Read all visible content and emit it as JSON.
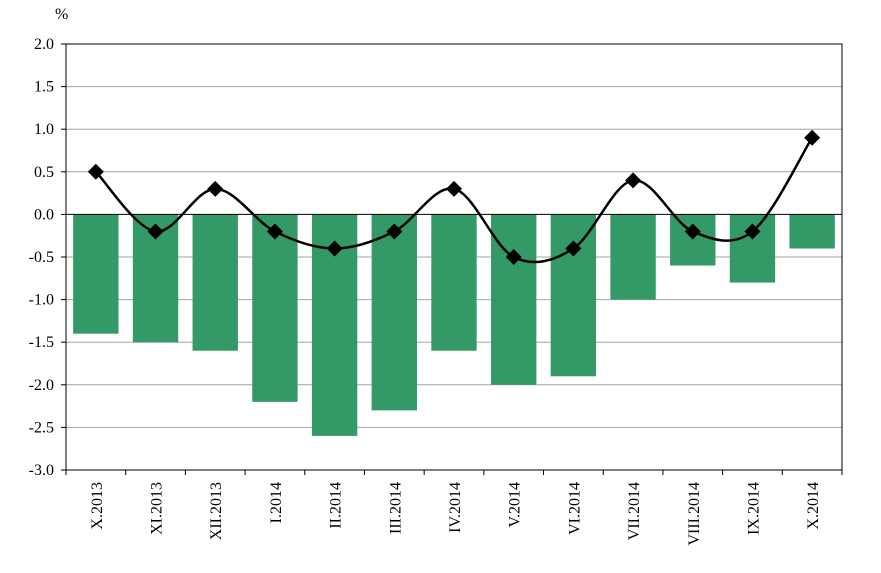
{
  "chart_data": {
    "type": "bar",
    "unit_label": "%",
    "categories": [
      "X.2013",
      "XI.2013",
      "XII.2013",
      "I.2014",
      "II.2014",
      "III.2014",
      "IV.2014",
      "V.2014",
      "VI.2014",
      "VII.2014",
      "VIII.2014",
      "IX.2014",
      "X.2014"
    ],
    "series": [
      {
        "type": "bar",
        "color": "#339966",
        "values": [
          -1.4,
          -1.5,
          -1.6,
          -2.2,
          -2.6,
          -2.3,
          -1.6,
          -2.0,
          -1.9,
          -1.0,
          -0.6,
          -0.8,
          -0.4
        ]
      },
      {
        "type": "line",
        "color": "#000000",
        "marker": "diamond",
        "values": [
          0.5,
          -0.2,
          0.3,
          -0.2,
          -0.4,
          -0.2,
          0.3,
          -0.5,
          -0.4,
          0.4,
          -0.2,
          -0.2,
          0.9
        ]
      }
    ],
    "ylim": [
      -3.0,
      2.0
    ],
    "yticks": [
      "2.0",
      "1.5",
      "1.0",
      "0.5",
      "0.0",
      "-0.5",
      "-1.0",
      "-1.5",
      "-2.0",
      "-2.5",
      "-3.0"
    ],
    "grid": true
  }
}
